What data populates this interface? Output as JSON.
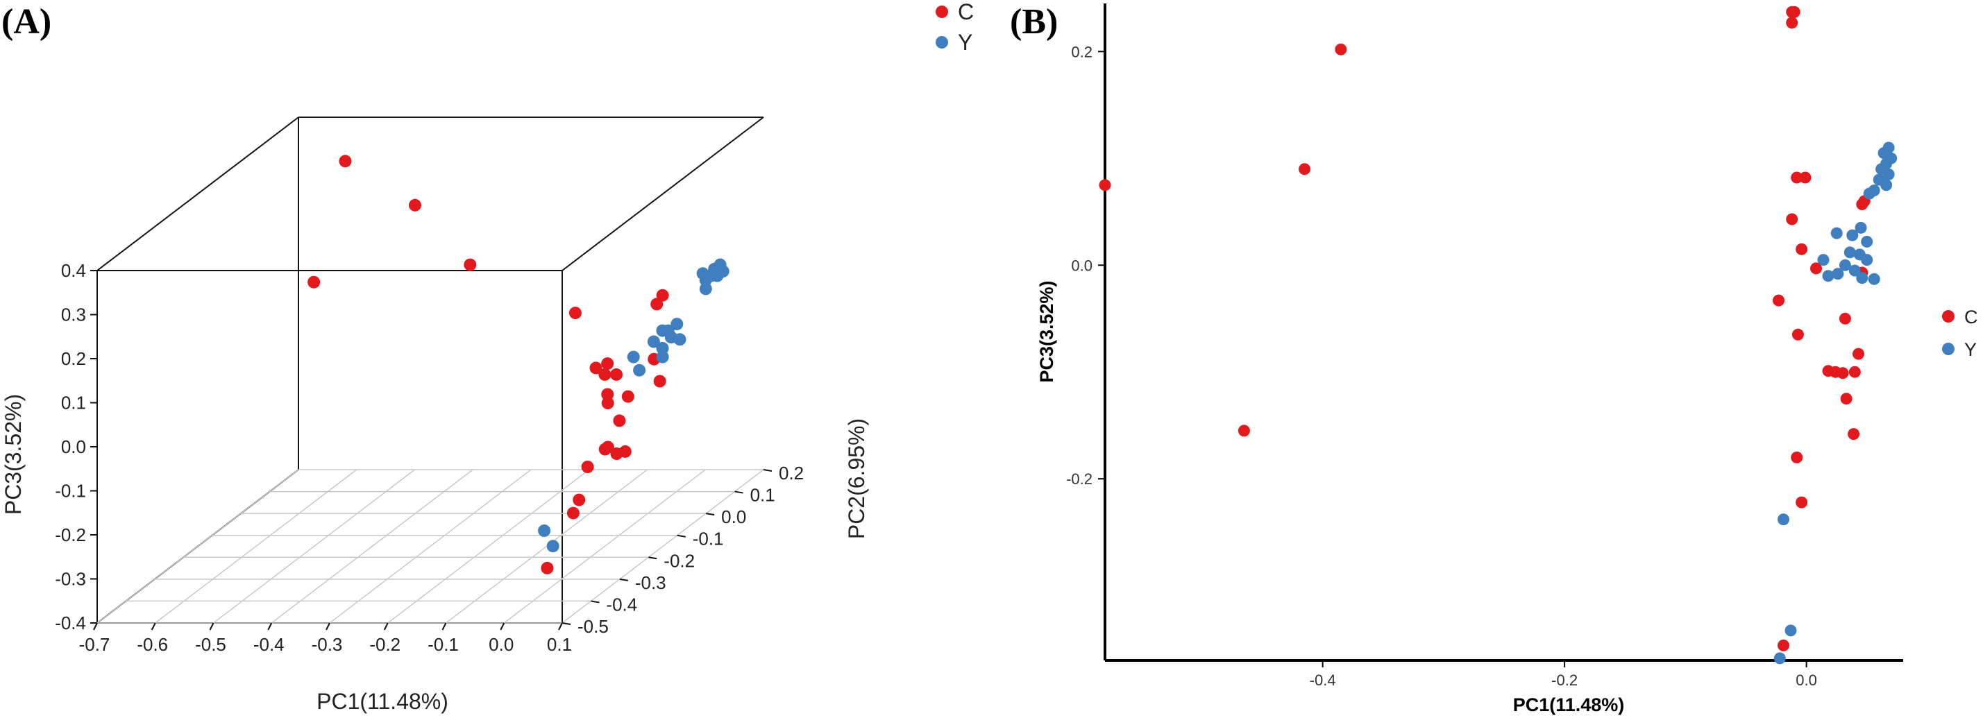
{
  "chart_data": [
    {
      "type": "scatter",
      "panel_label": "(A)",
      "projection": "3d",
      "xlabel": "PC1(11.48%)",
      "ylabel": "PC2(6.95%)",
      "zlabel": "PC3(3.52%)",
      "xlim": [
        -0.7,
        0.1
      ],
      "ylim": [
        -0.5,
        0.2
      ],
      "zlim": [
        -0.4,
        0.4
      ],
      "x_ticks": [
        "-0.7",
        "-0.6",
        "-0.5",
        "-0.4",
        "-0.3",
        "-0.2",
        "-0.1",
        "0.0",
        "0.1"
      ],
      "y_ticks": [
        "-0.5",
        "-0.4",
        "-0.3",
        "-0.2",
        "-0.1",
        "0.0",
        "0.1",
        "0.2"
      ],
      "z_ticks": [
        "-0.4",
        "-0.3",
        "-0.2",
        "-0.1",
        "0.0",
        "0.1",
        "0.2",
        "0.3",
        "0.4"
      ],
      "grid": "floor",
      "legend_position": "top-right",
      "legend": [
        "C",
        "Y"
      ],
      "colors": {
        "C": "#e3191e",
        "Y": "#3f7fbf"
      },
      "series": [
        {
          "name": "C",
          "points": [
            [
              -0.57,
              0.1,
              0.35
            ],
            [
              -0.45,
              0.1,
              0.25
            ],
            [
              -0.38,
              0.15,
              0.09
            ],
            [
              -0.55,
              -0.05,
              0.15
            ],
            [
              -0.1,
              -0.05,
              0.08
            ],
            [
              -0.04,
              -0.1,
              -0.02
            ],
            [
              -0.02,
              -0.1,
              -0.01
            ],
            [
              -0.02,
              -0.1,
              -0.08
            ],
            [
              0.0,
              -0.15,
              -0.01
            ],
            [
              0.02,
              -0.15,
              -0.01
            ],
            [
              0.04,
              -0.15,
              -0.06
            ],
            [
              0.03,
              -0.2,
              -0.05
            ],
            [
              0.05,
              -0.2,
              -0.09
            ],
            [
              0.06,
              -0.2,
              -0.16
            ],
            [
              0.04,
              -0.22,
              -0.14
            ],
            [
              0.02,
              -0.25,
              -0.17
            ],
            [
              0.05,
              -0.25,
              -0.13
            ],
            [
              0.07,
              -0.25,
              -0.14
            ],
            [
              0.03,
              -0.3,
              -0.22
            ],
            [
              0.07,
              -0.1,
              -0.05
            ],
            [
              0.02,
              -0.3,
              -0.25
            ],
            [
              0.04,
              -0.05,
              0.1
            ],
            [
              0.05,
              -0.05,
              0.12
            ],
            [
              0.0,
              -0.35,
              -0.35
            ],
            [
              0.06,
              -0.1,
              0.0
            ]
          ]
        },
        {
          "name": "Y",
          "points": [
            [
              0.06,
              0.12,
              0.08
            ],
            [
              0.07,
              0.12,
              0.09
            ],
            [
              0.06,
              0.11,
              0.1
            ],
            [
              0.07,
              0.11,
              0.11
            ],
            [
              0.05,
              0.1,
              0.08
            ],
            [
              0.06,
              0.1,
              0.09
            ],
            [
              0.05,
              0.09,
              0.1
            ],
            [
              0.06,
              0.08,
              0.07
            ],
            [
              0.04,
              0.0,
              0.0
            ],
            [
              0.05,
              -0.02,
              0.01
            ],
            [
              0.03,
              -0.01,
              0.02
            ],
            [
              0.04,
              -0.03,
              -0.01
            ],
            [
              0.06,
              -0.01,
              0.0
            ],
            [
              0.05,
              0.0,
              0.03
            ],
            [
              0.03,
              0.01,
              0.01
            ],
            [
              0.02,
              -0.02,
              0.0
            ],
            [
              0.0,
              -0.05,
              -0.02
            ],
            [
              0.05,
              -0.05,
              -0.02
            ],
            [
              0.01,
              -0.05,
              -0.05
            ],
            [
              -0.02,
              -0.32,
              -0.28
            ],
            [
              0.0,
              -0.33,
              -0.31
            ]
          ]
        }
      ]
    },
    {
      "type": "scatter",
      "panel_label": "(B)",
      "xlabel": "PC1(11.48%)",
      "ylabel": "PC3(3.52%)",
      "xlim": [
        -0.58,
        0.08
      ],
      "ylim": [
        -0.37,
        0.245
      ],
      "x_ticks": [
        -0.4,
        -0.2,
        0.0
      ],
      "x_tick_labels": [
        "-0.4",
        "-0.2",
        "0.0"
      ],
      "y_ticks": [
        -0.2,
        0.0,
        0.2
      ],
      "y_tick_labels": [
        "-0.2",
        "0.0",
        "0.2"
      ],
      "grid": false,
      "legend_position": "right",
      "legend": [
        "C",
        "Y"
      ],
      "colors": {
        "C": "#e3191e",
        "Y": "#3f7fbf"
      },
      "series": [
        {
          "name": "C",
          "points": [
            [
              -0.58,
              0.075
            ],
            [
              -0.415,
              0.09
            ],
            [
              -0.385,
              0.202
            ],
            [
              -0.465,
              -0.155
            ],
            [
              -0.012,
              0.237
            ],
            [
              -0.01,
              0.237
            ],
            [
              -0.012,
              0.227
            ],
            [
              -0.008,
              0.082
            ],
            [
              -0.001,
              0.082
            ],
            [
              -0.012,
              0.043
            ],
            [
              -0.004,
              0.015
            ],
            [
              0.008,
              -0.003
            ],
            [
              0.046,
              0.057
            ],
            [
              0.048,
              0.06
            ],
            [
              0.046,
              -0.007
            ],
            [
              -0.023,
              -0.033
            ],
            [
              -0.007,
              -0.065
            ],
            [
              0.032,
              -0.05
            ],
            [
              0.043,
              -0.083
            ],
            [
              0.018,
              -0.099
            ],
            [
              0.024,
              -0.1
            ],
            [
              0.03,
              -0.101
            ],
            [
              0.04,
              -0.1
            ],
            [
              0.033,
              -0.125
            ],
            [
              0.039,
              -0.158
            ],
            [
              -0.008,
              -0.18
            ],
            [
              -0.004,
              -0.222
            ],
            [
              -0.019,
              -0.356
            ]
          ]
        },
        {
          "name": "Y",
          "points": [
            [
              0.068,
              0.11
            ],
            [
              0.064,
              0.105
            ],
            [
              0.07,
              0.1
            ],
            [
              0.066,
              0.095
            ],
            [
              0.062,
              0.09
            ],
            [
              0.068,
              0.085
            ],
            [
              0.06,
              0.08
            ],
            [
              0.066,
              0.075
            ],
            [
              0.056,
              0.07
            ],
            [
              0.052,
              0.067
            ],
            [
              0.045,
              0.035
            ],
            [
              0.038,
              0.028
            ],
            [
              0.025,
              0.03
            ],
            [
              0.05,
              0.022
            ],
            [
              0.036,
              0.012
            ],
            [
              0.044,
              0.01
            ],
            [
              0.014,
              0.005
            ],
            [
              0.05,
              0.005
            ],
            [
              0.032,
              0.0
            ],
            [
              0.04,
              -0.005
            ],
            [
              0.026,
              -0.008
            ],
            [
              0.018,
              -0.01
            ],
            [
              0.046,
              -0.012
            ],
            [
              0.056,
              -0.013
            ],
            [
              -0.019,
              -0.238
            ],
            [
              -0.013,
              -0.342
            ],
            [
              -0.022,
              -0.368
            ]
          ]
        }
      ]
    }
  ]
}
